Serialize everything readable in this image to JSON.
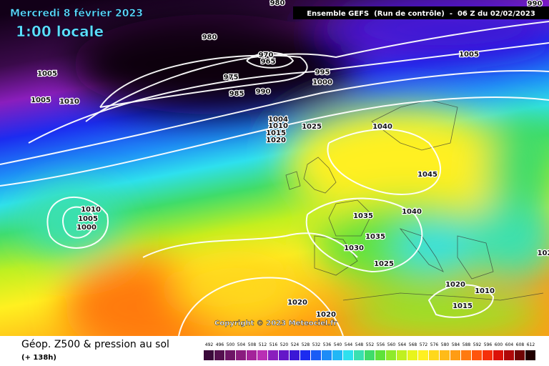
{
  "header": {
    "date": "Mercredi 8 février 2023",
    "time": "1:00 locale",
    "model": "Ensemble GEFS  (Run de contrôle)  -  06 Z du 02/02/2023"
  },
  "isobar_labels": [
    980,
    990,
    980,
    970,
    965,
    975,
    985,
    990,
    995,
    1000,
    1005,
    1005,
    1005,
    1010,
    1004,
    1010,
    1015,
    1020,
    1025,
    1040,
    1045,
    1035,
    1040,
    1035,
    1030,
    1025,
    1020,
    1015,
    1010,
    1020,
    1020,
    1010,
    1005,
    1000,
    102
  ],
  "copyright": "Copyright © 2023 Meteociel.fr",
  "footer": {
    "title": "Géop. Z500 & pression au sol",
    "lead": "(+ 138h)"
  },
  "color_scale": {
    "values": [
      492,
      496,
      500,
      504,
      508,
      512,
      516,
      520,
      524,
      528,
      532,
      536,
      540,
      544,
      548,
      552,
      556,
      560,
      564,
      568,
      572,
      576,
      580,
      584,
      588,
      592,
      596,
      600,
      604,
      608,
      612
    ],
    "colors": [
      "#3a0a3a",
      "#55104f",
      "#6e1566",
      "#8a1c7e",
      "#a4239a",
      "#b92fb4",
      "#8a1ebd",
      "#6417c8",
      "#3b17d6",
      "#1c2bf0",
      "#1a5cf5",
      "#1e8cf7",
      "#22b7f5",
      "#2ee0ee",
      "#3ae0b0",
      "#3fdc6a",
      "#5ee23a",
      "#8fea2a",
      "#c0f020",
      "#e8f41c",
      "#fff020",
      "#ffd81c",
      "#ffbb18",
      "#ff9c14",
      "#ff7a10",
      "#ff540c",
      "#f5300a",
      "#dc1208",
      "#b00808",
      "#700404",
      "#200000"
    ]
  }
}
